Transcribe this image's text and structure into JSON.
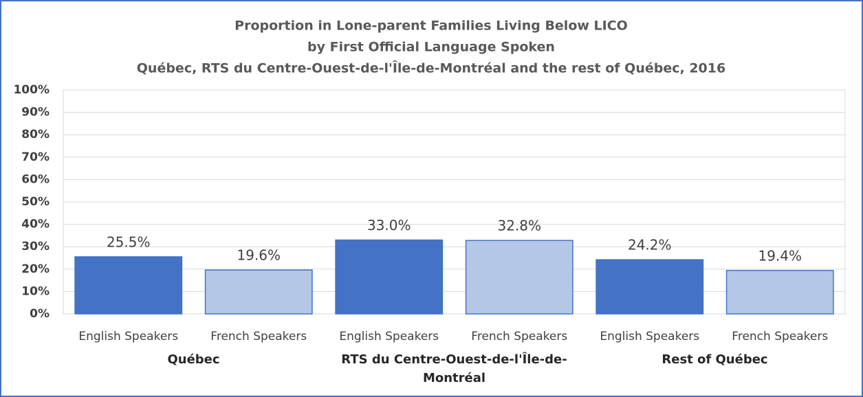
{
  "chart_data": {
    "type": "bar",
    "title": [
      "Proportion in Lone-parent Families Living Below LICO",
      "by First Official Language Spoken",
      "Québec, RTS du Centre-Ouest-de-l'Île-de-Montréal and the rest of Québec, 2016"
    ],
    "categories": [
      "English Speakers",
      "French Speakers",
      "English Speakers",
      "French Speakers",
      "English Speakers",
      "French Speakers"
    ],
    "groups": [
      "Québec",
      "RTS du Centre-Ouest-de-l'Île-de-Montréal",
      "Rest of Québec"
    ],
    "values": [
      25.5,
      19.6,
      33.0,
      32.8,
      24.2,
      19.4
    ],
    "value_labels": [
      "25.5%",
      "19.6%",
      "33.0%",
      "32.8%",
      "24.2%",
      "19.4%"
    ],
    "colors": [
      "#4472c4",
      "#b4c7e7",
      "#4472c4",
      "#b4c7e7",
      "#4472c4",
      "#b4c7e7"
    ],
    "ylim": [
      0,
      100
    ],
    "yticks": [
      {
        "value": 0,
        "label": "0%"
      },
      {
        "value": 10,
        "label": "10%"
      },
      {
        "value": 20,
        "label": "20%"
      },
      {
        "value": 30,
        "label": "30%"
      },
      {
        "value": 40,
        "label": "40%"
      },
      {
        "value": 50,
        "label": "50%"
      },
      {
        "value": 60,
        "label": "60%"
      },
      {
        "value": 70,
        "label": "70%"
      },
      {
        "value": 80,
        "label": "80%"
      },
      {
        "value": 90,
        "label": "90%"
      },
      {
        "value": 100,
        "label": "100%"
      }
    ],
    "grid": true
  }
}
